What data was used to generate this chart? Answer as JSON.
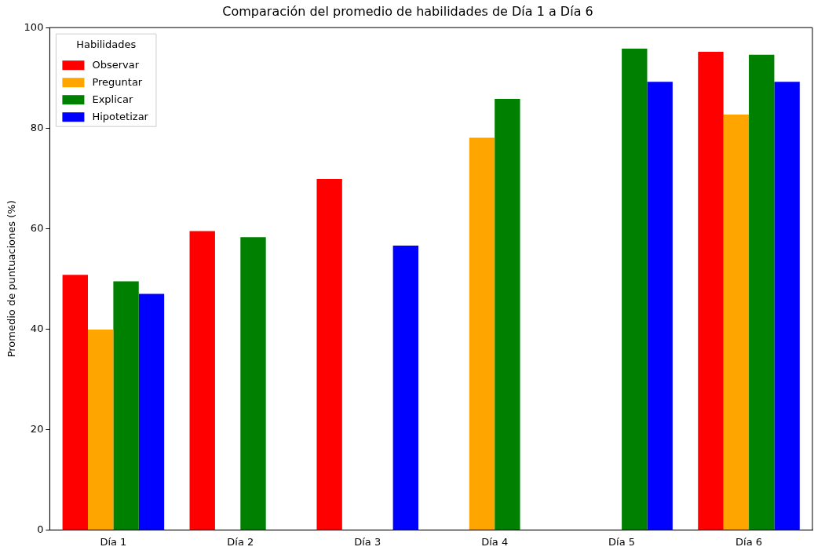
{
  "chart_data": {
    "type": "bar",
    "title": "Comparación del promedio de habilidades de Día 1 a Día 6",
    "ylabel": "Promedio de puntuaciones (%)",
    "legend_title": "Habilidades",
    "legend": "top left",
    "grid": false,
    "categories": [
      "Día 1",
      "Día 2",
      "Día 3",
      "Día 4",
      "Día 5",
      "Día 6"
    ],
    "ylim": [
      0,
      100
    ],
    "yticks": [
      0,
      20,
      40,
      60,
      80,
      100
    ],
    "series": [
      {
        "name": "Observar",
        "color": "#ff0000",
        "values": [
          50.8,
          59.5,
          69.9,
          null,
          null,
          95.2
        ]
      },
      {
        "name": "Preguntar",
        "color": "#ffa500",
        "values": [
          39.9,
          null,
          null,
          78.1,
          null,
          82.7
        ]
      },
      {
        "name": "Explicar",
        "color": "#008000",
        "values": [
          49.5,
          58.3,
          null,
          85.8,
          95.8,
          94.6
        ]
      },
      {
        "name": "Hipotetizar",
        "color": "#0000ff",
        "values": [
          47.0,
          null,
          56.6,
          null,
          89.2,
          89.2
        ]
      }
    ]
  }
}
